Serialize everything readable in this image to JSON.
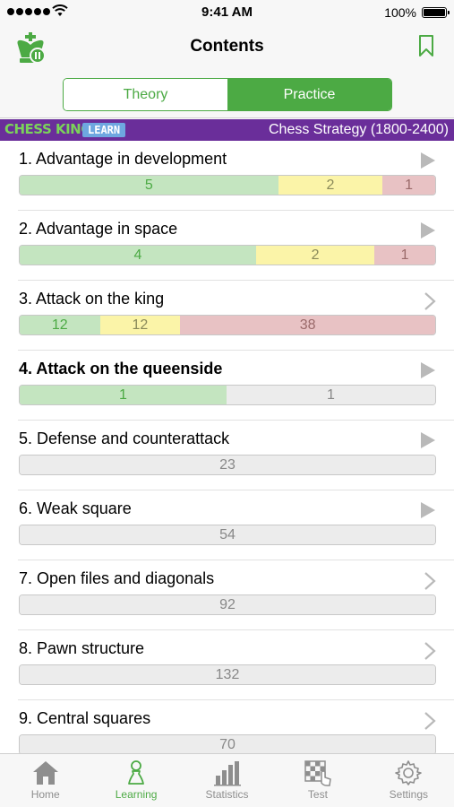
{
  "status_bar": {
    "time": "9:41 AM",
    "battery": "100%"
  },
  "navbar": {
    "title": "Contents"
  },
  "segmented": {
    "theory": "Theory",
    "practice": "Practice",
    "selected": "Practice"
  },
  "banner": {
    "brand": "CHESS KING",
    "badge": "LEARN",
    "course": "Chess Strategy (1800-2400)"
  },
  "items": [
    {
      "title": "1. Advantage in development",
      "bold": false,
      "icon": "play-icon",
      "segments": [
        {
          "value": "5",
          "color": "green"
        },
        {
          "value": "2",
          "color": "yellow"
        },
        {
          "value": "1",
          "color": "red"
        }
      ]
    },
    {
      "title": "2. Advantage in space",
      "bold": false,
      "icon": "play-icon",
      "segments": [
        {
          "value": "4",
          "color": "green"
        },
        {
          "value": "2",
          "color": "yellow"
        },
        {
          "value": "1",
          "color": "red"
        }
      ]
    },
    {
      "title": "3. Attack on the king",
      "bold": false,
      "icon": "chevron-right-icon",
      "segments": [
        {
          "value": "12",
          "color": "green"
        },
        {
          "value": "12",
          "color": "yellow"
        },
        {
          "value": "38",
          "color": "red"
        }
      ]
    },
    {
      "title": "4. Attack on the queenside",
      "bold": true,
      "icon": "play-icon",
      "segments": [
        {
          "value": "1",
          "color": "green"
        },
        {
          "value": "1",
          "color": "gray"
        }
      ]
    },
    {
      "title": "5. Defense and counterattack",
      "bold": false,
      "icon": "play-icon",
      "segments": [
        {
          "value": "23",
          "color": "gray"
        }
      ]
    },
    {
      "title": "6. Weak square",
      "bold": false,
      "icon": "play-icon",
      "segments": [
        {
          "value": "54",
          "color": "gray"
        }
      ]
    },
    {
      "title": "7. Open files and diagonals",
      "bold": false,
      "icon": "chevron-right-icon",
      "segments": [
        {
          "value": "92",
          "color": "gray"
        }
      ]
    },
    {
      "title": "8. Pawn structure",
      "bold": false,
      "icon": "chevron-right-icon",
      "segments": [
        {
          "value": "132",
          "color": "gray"
        }
      ]
    },
    {
      "title": "9. Central squares",
      "bold": false,
      "icon": "chevron-right-icon",
      "segments": [
        {
          "value": "70",
          "color": "gray"
        }
      ]
    }
  ],
  "tabbar": {
    "tabs": [
      {
        "label": "Home",
        "icon": "home-icon",
        "active": false
      },
      {
        "label": "Learning",
        "icon": "pawn-icon",
        "active": true
      },
      {
        "label": "Statistics",
        "icon": "bar-chart-icon",
        "active": false
      },
      {
        "label": "Test",
        "icon": "chessboard-tap-icon",
        "active": false
      },
      {
        "label": "Settings",
        "icon": "gear-icon",
        "active": false
      }
    ]
  },
  "colors": {
    "accent": "#4caa44",
    "banner": "#6a2e9a",
    "green": "#c4e5c0",
    "yellow": "#fbf4a8",
    "red": "#e8c2c4",
    "gray": "#ececec"
  }
}
